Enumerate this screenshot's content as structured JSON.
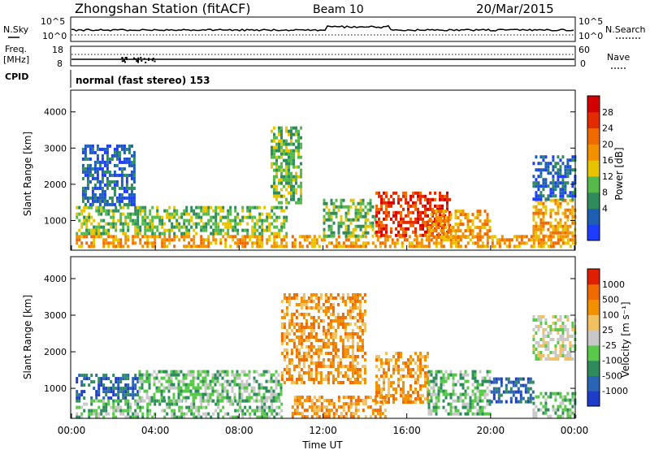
{
  "header": {
    "title": "Zhongshan Station (fitACF)",
    "beam": "Beam 10",
    "date": "20/Mar/2015"
  },
  "top_panels": {
    "nsky_label": "N.Sky",
    "nsky_ticks": [
      "10^5",
      "10^0"
    ],
    "nsearch_label": "N.Search",
    "nsearch_ticks": [
      "10^5",
      "10^0"
    ],
    "freq_label_1": "Freq.",
    "freq_label_2": "[MHz]",
    "freq_ticks": [
      "18",
      "8"
    ],
    "nave_label": "Nave",
    "nave_ticks": [
      "60",
      "0"
    ],
    "cpid_label": "CPID",
    "cpid_value": "normal (fast stereo) 153"
  },
  "chart_data": [
    {
      "type": "heatmap",
      "name": "power",
      "ylabel": "Slant Range [km]",
      "yticks": [
        "1000",
        "2000",
        "3000",
        "4000"
      ],
      "ylim": [
        180,
        4600
      ],
      "xlim": [
        0,
        24
      ],
      "colorbar_label": "Power [dB]",
      "colorbar_ticks": [
        "28",
        "24",
        "20",
        "16",
        "12",
        "8",
        "4"
      ],
      "colorbar_colors": [
        "#1e3cff",
        "#1e5fb4",
        "#2f8a5c",
        "#56b94c",
        "#e8c300",
        "#f29000",
        "#f06a00",
        "#e32a00",
        "#d30000"
      ],
      "echo_regions": [
        {
          "t0": 0.2,
          "t1": 10.3,
          "r0": 250,
          "r1": 600,
          "level": "high"
        },
        {
          "t0": 0.2,
          "t1": 10.3,
          "r0": 600,
          "r1": 1400,
          "level": "medium"
        },
        {
          "t0": 0.5,
          "t1": 3.0,
          "r0": 1400,
          "r1": 3100,
          "level": "low"
        },
        {
          "t0": 9.5,
          "t1": 11.0,
          "r0": 1500,
          "r1": 3600,
          "level": "medium"
        },
        {
          "t0": 10.5,
          "t1": 24.0,
          "r0": 250,
          "r1": 600,
          "level": "high"
        },
        {
          "t0": 12.0,
          "t1": 14.5,
          "r0": 600,
          "r1": 1600,
          "level": "medium"
        },
        {
          "t0": 14.5,
          "t1": 18.0,
          "r0": 600,
          "r1": 1800,
          "level": "max"
        },
        {
          "t0": 17.0,
          "t1": 20.0,
          "r0": 500,
          "r1": 1300,
          "level": "high"
        },
        {
          "t0": 22.0,
          "t1": 24.0,
          "r0": 600,
          "r1": 1600,
          "level": "high"
        },
        {
          "t0": 22.0,
          "t1": 24.0,
          "r0": 1600,
          "r1": 2800,
          "level": "low"
        }
      ]
    },
    {
      "type": "heatmap",
      "name": "velocity",
      "ylabel": "Slant Range [km]",
      "yticks": [
        "1000",
        "2000",
        "3000",
        "4000"
      ],
      "ylim": [
        180,
        4600
      ],
      "xlim": [
        0,
        24
      ],
      "xticks": [
        "00:00",
        "04:00",
        "08:00",
        "12:00",
        "16:00",
        "20:00",
        "00:00"
      ],
      "xlabel": "Time UT",
      "colorbar_label": "Velocity [m s⁻¹]",
      "colorbar_ticks": [
        "1000",
        "500",
        "100",
        "25",
        "-25",
        "-100",
        "-500",
        "-1000"
      ],
      "colorbar_colors": [
        "#1e3cc8",
        "#2a64b4",
        "#2f8a5c",
        "#5ac84a",
        "#c8c8c8",
        "#f2c060",
        "#f29000",
        "#f06a00",
        "#e01e00"
      ],
      "echo_regions": [
        {
          "t0": 0.2,
          "t1": 3.2,
          "r0": 700,
          "r1": 1400,
          "level": "blue"
        },
        {
          "t0": 0.2,
          "t1": 10.0,
          "r0": 250,
          "r1": 700,
          "level": "green"
        },
        {
          "t0": 3.2,
          "t1": 10.0,
          "r0": 700,
          "r1": 1500,
          "level": "green"
        },
        {
          "t0": 10.5,
          "t1": 15.0,
          "r0": 250,
          "r1": 800,
          "level": "orange"
        },
        {
          "t0": 10.0,
          "t1": 14.0,
          "r0": 1200,
          "r1": 3600,
          "level": "orange"
        },
        {
          "t0": 14.5,
          "t1": 17.0,
          "r0": 600,
          "r1": 2000,
          "level": "orange"
        },
        {
          "t0": 17.0,
          "t1": 20.0,
          "r0": 300,
          "r1": 1500,
          "level": "green"
        },
        {
          "t0": 20.0,
          "t1": 22.0,
          "r0": 600,
          "r1": 1300,
          "level": "blue"
        },
        {
          "t0": 22.0,
          "t1": 24.0,
          "r0": 250,
          "r1": 900,
          "level": "green"
        },
        {
          "t0": 22.0,
          "t1": 24.0,
          "r0": 1800,
          "r1": 3000,
          "level": "gray"
        }
      ]
    }
  ]
}
